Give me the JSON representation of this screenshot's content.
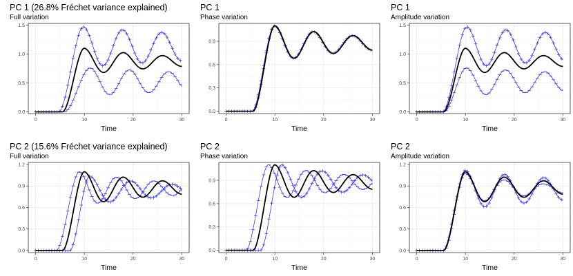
{
  "colors": {
    "mean_line": "#000000",
    "plus_line": "#3b3bd6",
    "minus_line": "#3b3bd6",
    "grid_major": "#ebebeb",
    "grid_minor": "#f5f5f5",
    "panel_border": "#333333"
  },
  "chart_data": [
    {
      "type": "line",
      "title": "PC 1 (26.8% Fréchet variance explained)",
      "subtitle": "Full variation",
      "xlabel": "Time",
      "xlim": [
        -1.5,
        31.5
      ],
      "ylim": [
        -0.03,
        1.53
      ],
      "xticks": [
        0,
        10,
        20,
        30
      ],
      "yticks": [
        0.0,
        0.5,
        1.0,
        1.5
      ],
      "ytick_labels": [
        "0.0",
        "0.5",
        "1.0",
        "1.5"
      ],
      "series": [
        {
          "name": "mean",
          "style": "solid",
          "params": {
            "onset": 5.5,
            "rise_end": 10,
            "amp": 1.1,
            "level": 0.87,
            "osc": 0.24,
            "freq": 0.78,
            "decay": 0.05,
            "shift": 0,
            "ampScale": 1
          }
        },
        {
          "name": "plus",
          "style": "plus",
          "params": {
            "onset": 4.4,
            "rise_end": 9.5,
            "amp": 1.47,
            "level": 1.12,
            "osc": 0.2,
            "freq": 0.78,
            "decay": 0.02,
            "shift": 0.3,
            "ampScale": 1
          }
        },
        {
          "name": "minus",
          "style": "minus",
          "params": {
            "onset": 6.2,
            "rise_end": 11.5,
            "amp": 0.76,
            "level": 0.52,
            "osc": 0.2,
            "freq": 0.78,
            "decay": 0.02,
            "shift": -0.3,
            "ampScale": 1
          }
        }
      ]
    },
    {
      "type": "line",
      "title": "PC 1",
      "subtitle": "Phase variation",
      "xlabel": "Time",
      "xlim": [
        -1.5,
        31.5
      ],
      "ylim": [
        -0.03,
        1.13
      ],
      "xticks": [
        0,
        10,
        20,
        30
      ],
      "yticks": [
        0.0,
        0.3,
        0.6,
        0.9
      ],
      "ytick_labels": [
        "0.0",
        "0.3",
        "0.6",
        "0.9"
      ],
      "series": [
        {
          "name": "mean",
          "style": "solid",
          "params": {
            "onset": 5.5,
            "rise_end": 10,
            "amp": 1.1,
            "level": 0.87,
            "osc": 0.24,
            "freq": 0.78,
            "decay": 0.05,
            "shift": 0,
            "ampScale": 1
          }
        },
        {
          "name": "plus",
          "style": "plus",
          "params": {
            "onset": 4.8,
            "rise_end": 9.4,
            "amp": 1.1,
            "level": 0.87,
            "osc": 0.24,
            "freq": 0.78,
            "decay": 0.05,
            "shift": 0.5,
            "ampScale": 1
          }
        },
        {
          "name": "minus",
          "style": "minus",
          "params": {
            "onset": 6.0,
            "rise_end": 10.4,
            "amp": 1.1,
            "level": 0.87,
            "osc": 0.24,
            "freq": 0.78,
            "decay": 0.05,
            "shift": -0.5,
            "ampScale": 1
          }
        }
      ]
    },
    {
      "type": "line",
      "title": "PC 1",
      "subtitle": "Amplitude variation",
      "xlabel": "Time",
      "xlim": [
        -1.5,
        31.5
      ],
      "ylim": [
        -0.03,
        1.53
      ],
      "xticks": [
        0,
        10,
        20,
        30
      ],
      "yticks": [
        0.0,
        0.5,
        1.0,
        1.5
      ],
      "ytick_labels": [
        "0.0",
        "0.5",
        "1.0",
        "1.5"
      ],
      "series": [
        {
          "name": "mean",
          "style": "solid",
          "params": {
            "onset": 5.5,
            "rise_end": 10,
            "amp": 1.1,
            "level": 0.87,
            "osc": 0.24,
            "freq": 0.78,
            "decay": 0.05,
            "shift": 0,
            "ampScale": 1
          }
        },
        {
          "name": "plus",
          "style": "plus",
          "params": {
            "onset": 5.0,
            "rise_end": 10,
            "amp": 1.47,
            "level": 1.12,
            "osc": 0.2,
            "freq": 0.78,
            "decay": 0.02,
            "shift": 0.3,
            "ampScale": 1
          }
        },
        {
          "name": "minus",
          "style": "minus",
          "params": {
            "onset": 5.9,
            "rise_end": 10.5,
            "amp": 0.76,
            "level": 0.52,
            "osc": 0.2,
            "freq": 0.78,
            "decay": 0.02,
            "shift": -0.3,
            "ampScale": 1
          }
        }
      ]
    },
    {
      "type": "line",
      "title": "PC 2 (15.6% Fréchet variance explained)",
      "subtitle": "Full variation",
      "xlabel": "Time",
      "xlim": [
        -1.5,
        31.5
      ],
      "ylim": [
        -0.03,
        1.23
      ],
      "xticks": [
        0,
        10,
        20,
        30
      ],
      "yticks": [
        0.0,
        0.3,
        0.6,
        0.9,
        1.2
      ],
      "ytick_labels": [
        "0.0",
        "0.3",
        "0.6",
        "0.9",
        "1.2"
      ],
      "series": [
        {
          "name": "mean",
          "style": "solid",
          "params": {
            "onset": 5.5,
            "rise_end": 10,
            "amp": 1.1,
            "level": 0.87,
            "osc": 0.24,
            "freq": 0.78,
            "decay": 0.05,
            "shift": 0,
            "ampScale": 1
          }
        },
        {
          "name": "plus",
          "style": "plus",
          "params": {
            "onset": 5.2,
            "rise_end": 9.3,
            "amp": 1.04,
            "level": 0.84,
            "osc": 0.2,
            "freq": 0.74,
            "decay": 0.05,
            "shift": 1.8,
            "ampScale": 0.9
          }
        },
        {
          "name": "minus",
          "style": "minus",
          "params": {
            "onset": 5.8,
            "rise_end": 10.6,
            "amp": 1.1,
            "level": 0.86,
            "osc": 0.22,
            "freq": 0.82,
            "decay": 0.05,
            "shift": -1.6,
            "ampScale": 1.05
          }
        }
      ]
    },
    {
      "type": "line",
      "title": "PC 2",
      "subtitle": "Phase variation",
      "xlabel": "Time",
      "xlim": [
        -1.5,
        31.5
      ],
      "ylim": [
        -0.03,
        1.13
      ],
      "xticks": [
        0,
        10,
        20,
        30
      ],
      "yticks": [
        0.0,
        0.3,
        0.6,
        0.9
      ],
      "ytick_labels": [
        "0.0",
        "0.3",
        "0.6",
        "0.9"
      ],
      "series": [
        {
          "name": "mean",
          "style": "solid",
          "params": {
            "onset": 5.5,
            "rise_end": 10,
            "amp": 1.1,
            "level": 0.87,
            "osc": 0.24,
            "freq": 0.78,
            "decay": 0.05,
            "shift": 0,
            "ampScale": 1
          }
        },
        {
          "name": "plus",
          "style": "plus",
          "params": {
            "onset": 5.2,
            "rise_end": 9.6,
            "amp": 1.1,
            "level": 0.87,
            "osc": 0.24,
            "freq": 0.75,
            "decay": 0.05,
            "shift": 1.8,
            "ampScale": 1
          }
        },
        {
          "name": "minus",
          "style": "minus",
          "params": {
            "onset": 5.8,
            "rise_end": 10.5,
            "amp": 1.1,
            "level": 0.87,
            "osc": 0.24,
            "freq": 0.81,
            "decay": 0.05,
            "shift": -1.8,
            "ampScale": 1
          }
        }
      ]
    },
    {
      "type": "line",
      "title": "PC 2",
      "subtitle": "Amplitude variation",
      "xlabel": "Time",
      "xlim": [
        -1.5,
        31.5
      ],
      "ylim": [
        -0.03,
        1.23
      ],
      "xticks": [
        0,
        10,
        20,
        30
      ],
      "yticks": [
        0.0,
        0.3,
        0.6,
        0.9,
        1.2
      ],
      "ytick_labels": [
        "0.0",
        "0.3",
        "0.6",
        "0.9",
        "1.2"
      ],
      "series": [
        {
          "name": "mean",
          "style": "solid",
          "params": {
            "onset": 5.5,
            "rise_end": 10,
            "amp": 1.1,
            "level": 0.87,
            "osc": 0.24,
            "freq": 0.78,
            "decay": 0.05,
            "shift": 0,
            "ampScale": 1
          }
        },
        {
          "name": "plus",
          "style": "plus",
          "params": {
            "onset": 5.4,
            "rise_end": 10,
            "amp": 1.12,
            "level": 0.85,
            "osc": 0.24,
            "freq": 0.78,
            "decay": 0.03,
            "shift": 0,
            "ampScale": 1
          }
        },
        {
          "name": "minus",
          "style": "minus",
          "params": {
            "onset": 5.6,
            "rise_end": 10,
            "amp": 1.08,
            "level": 0.86,
            "osc": 0.24,
            "freq": 0.78,
            "decay": 0.07,
            "shift": 0,
            "ampScale": 1
          }
        }
      ]
    }
  ]
}
